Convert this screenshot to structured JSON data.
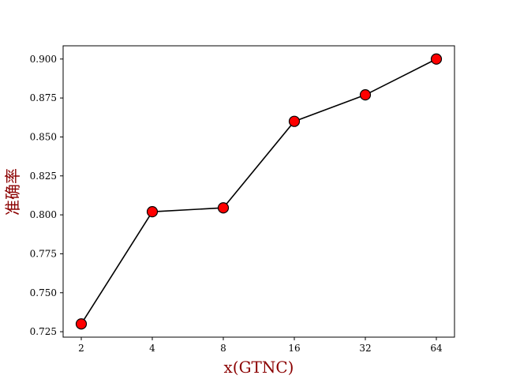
{
  "chart_data": {
    "type": "line",
    "title": "",
    "xlabel": "x(GTNC)",
    "ylabel": "准确率",
    "x_scale": "log2",
    "categories": [
      "2",
      "4",
      "8",
      "16",
      "32",
      "64"
    ],
    "x": [
      2,
      4,
      8,
      16,
      32,
      64
    ],
    "series": [
      {
        "values": [
          0.73,
          0.802,
          0.8045,
          0.86,
          0.877,
          0.9
        ]
      }
    ],
    "ylim": [
      0.7215,
      0.9085
    ],
    "yticks": [
      "0.725",
      "0.750",
      "0.775",
      "0.800",
      "0.825",
      "0.850",
      "0.875",
      "0.900"
    ],
    "grid": false,
    "legend": "none",
    "colors": {
      "line": "#000000",
      "marker_fill": "#ff0000",
      "marker_edge": "#000000",
      "label": "#8b0000"
    }
  }
}
